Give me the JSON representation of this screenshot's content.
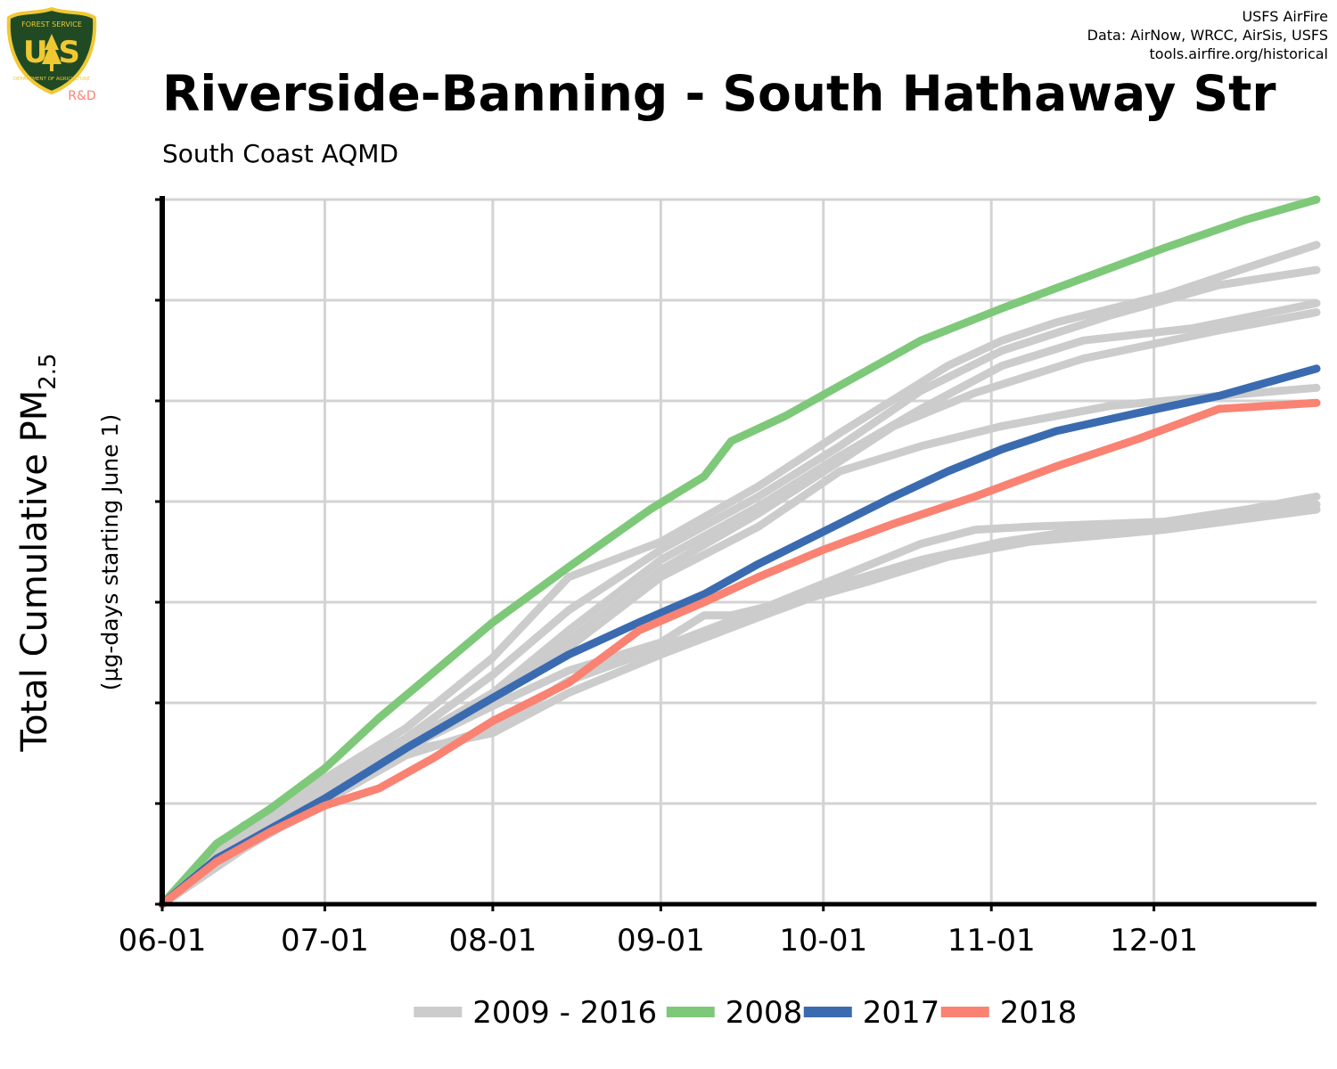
{
  "logo": {
    "top_text": "FOREST SERVICE",
    "letters": "U S",
    "bottom_text": "DEPARTMENT OF AGRICULTURE",
    "tag": "R&D"
  },
  "credits": {
    "line1": "USFS AirFire",
    "line2": "Data: AirNow, WRCC, AirSis, USFS",
    "line3": "tools.airfire.org/historical"
  },
  "header": {
    "title": "Riverside-Banning - South Hathaway Str",
    "subtitle": "South Coast AQMD"
  },
  "colors": {
    "history": "#cccccc",
    "y2008": "#7ec87a",
    "y2017": "#3a6bb0",
    "y2018": "#f98272",
    "grid": "#d3d3d3",
    "axis": "#000000"
  },
  "chart_data": {
    "type": "line",
    "title": "Riverside-Banning - South Hathaway Str",
    "ylabel_main": "Total Cumulative PM",
    "ylabel_sub": "2.5",
    "ylabel_units": "(µg-days starting June 1)",
    "xlabel": "",
    "x_tick_labels": [
      "06-01",
      "07-01",
      "08-01",
      "09-01",
      "10-01",
      "11-01",
      "12-01"
    ],
    "x_tick_days": [
      0,
      30,
      61,
      92,
      122,
      153,
      183
    ],
    "xlim": [
      0,
      213
    ],
    "ylim": [
      0,
      7
    ],
    "y_ticks": [
      0,
      1,
      2,
      3,
      4,
      5,
      6,
      7
    ],
    "y_tick_labels_shown": false,
    "grid": true,
    "legend": {
      "position": "bottom",
      "entries": [
        {
          "label": "2009 - 2016",
          "color": "#cccccc"
        },
        {
          "label": "2008",
          "color": "#7ec87a"
        },
        {
          "label": "2017",
          "color": "#3a6bb0"
        },
        {
          "label": "2018",
          "color": "#f98272"
        }
      ]
    },
    "series": [
      {
        "name": "2009 - 2016",
        "color": "#cccccc",
        "x": [
          0,
          15,
          30,
          45,
          61,
          75,
          92,
          100,
          105,
          115,
          125,
          140,
          155,
          170,
          185,
          200,
          213
        ],
        "y": [
          0,
          0.78,
          1.15,
          1.55,
          1.97,
          2.32,
          2.6,
          2.87,
          2.87,
          3.0,
          3.18,
          3.42,
          3.6,
          3.72,
          3.75,
          3.85,
          3.97
        ]
      },
      {
        "name": "2009 - 2016",
        "color": "#cccccc",
        "x": [
          0,
          15,
          30,
          45,
          61,
          75,
          92,
          110,
          125,
          145,
          155,
          165,
          185,
          200,
          213
        ],
        "y": [
          0,
          0.75,
          1.25,
          1.75,
          2.45,
          3.25,
          3.6,
          4.15,
          4.68,
          5.35,
          5.6,
          5.78,
          6.05,
          6.32,
          6.55
        ]
      },
      {
        "name": "2009 - 2016",
        "color": "#cccccc",
        "x": [
          0,
          15,
          30,
          45,
          61,
          75,
          92,
          110,
          125,
          140,
          155,
          175,
          195,
          213
        ],
        "y": [
          0,
          0.72,
          1.2,
          1.65,
          2.28,
          2.92,
          3.52,
          4.05,
          4.55,
          5.1,
          5.5,
          5.85,
          6.15,
          6.3
        ]
      },
      {
        "name": "2009 - 2016",
        "color": "#cccccc",
        "x": [
          0,
          15,
          30,
          45,
          61,
          75,
          92,
          110,
          125,
          140,
          155,
          170,
          190,
          213
        ],
        "y": [
          0,
          0.7,
          1.18,
          1.6,
          2.1,
          2.72,
          3.42,
          3.95,
          4.45,
          4.92,
          5.35,
          5.6,
          5.72,
          5.97
        ]
      },
      {
        "name": "2009 - 2016",
        "color": "#cccccc",
        "x": [
          0,
          15,
          30,
          45,
          61,
          75,
          92,
          110,
          125,
          135,
          150,
          170,
          195,
          213
        ],
        "y": [
          0,
          0.68,
          1.15,
          1.58,
          2.07,
          2.62,
          3.32,
          3.88,
          4.4,
          4.75,
          5.08,
          5.42,
          5.7,
          5.88
        ]
      },
      {
        "name": "2009 - 2016",
        "color": "#cccccc",
        "x": [
          0,
          15,
          30,
          45,
          61,
          75,
          92,
          110,
          125,
          140,
          155,
          175,
          195,
          213
        ],
        "y": [
          0,
          0.66,
          1.12,
          1.55,
          2.02,
          2.55,
          3.25,
          3.75,
          4.3,
          4.55,
          4.75,
          4.95,
          5.05,
          5.13
        ]
      },
      {
        "name": "2009 - 2016",
        "color": "#cccccc",
        "x": [
          0,
          15,
          30,
          45,
          61,
          75,
          92,
          110,
          125,
          140,
          150,
          160,
          185,
          200,
          213
        ],
        "y": [
          0,
          0.55,
          1.02,
          1.48,
          1.75,
          2.22,
          2.55,
          2.92,
          3.25,
          3.58,
          3.72,
          3.75,
          3.8,
          3.92,
          4.05
        ]
      },
      {
        "name": "2009 - 2016",
        "color": "#cccccc",
        "x": [
          0,
          15,
          30,
          45,
          61,
          75,
          92,
          110,
          120,
          130,
          145,
          160,
          185,
          213
        ],
        "y": [
          0,
          0.62,
          1.05,
          1.52,
          1.7,
          2.1,
          2.48,
          2.85,
          3.05,
          3.2,
          3.45,
          3.6,
          3.72,
          3.92
        ]
      },
      {
        "name": "2008",
        "color": "#7ec87a",
        "x": [
          0,
          10,
          20,
          30,
          40,
          50,
          61,
          75,
          90,
          100,
          105,
          115,
          125,
          140,
          155,
          170,
          185,
          200,
          213
        ],
        "y": [
          0,
          0.6,
          0.95,
          1.35,
          1.85,
          2.3,
          2.8,
          3.35,
          3.92,
          4.25,
          4.6,
          4.85,
          5.15,
          5.6,
          5.92,
          6.22,
          6.52,
          6.8,
          7.0
        ]
      },
      {
        "name": "2017",
        "color": "#3a6bb0",
        "x": [
          0,
          10,
          20,
          30,
          45,
          61,
          75,
          88,
          100,
          110,
          122,
          135,
          145,
          155,
          165,
          180,
          195,
          213
        ],
        "y": [
          0,
          0.45,
          0.75,
          1.05,
          1.55,
          2.05,
          2.48,
          2.8,
          3.08,
          3.38,
          3.7,
          4.05,
          4.3,
          4.52,
          4.7,
          4.88,
          5.05,
          5.32
        ]
      },
      {
        "name": "2018",
        "color": "#f98272",
        "x": [
          0,
          10,
          20,
          30,
          40,
          50,
          61,
          75,
          88,
          100,
          110,
          122,
          135,
          150,
          165,
          180,
          195,
          213
        ],
        "y": [
          0,
          0.42,
          0.72,
          0.98,
          1.15,
          1.45,
          1.82,
          2.2,
          2.72,
          3.0,
          3.25,
          3.52,
          3.78,
          4.05,
          4.35,
          4.62,
          4.92,
          4.98
        ]
      }
    ]
  }
}
